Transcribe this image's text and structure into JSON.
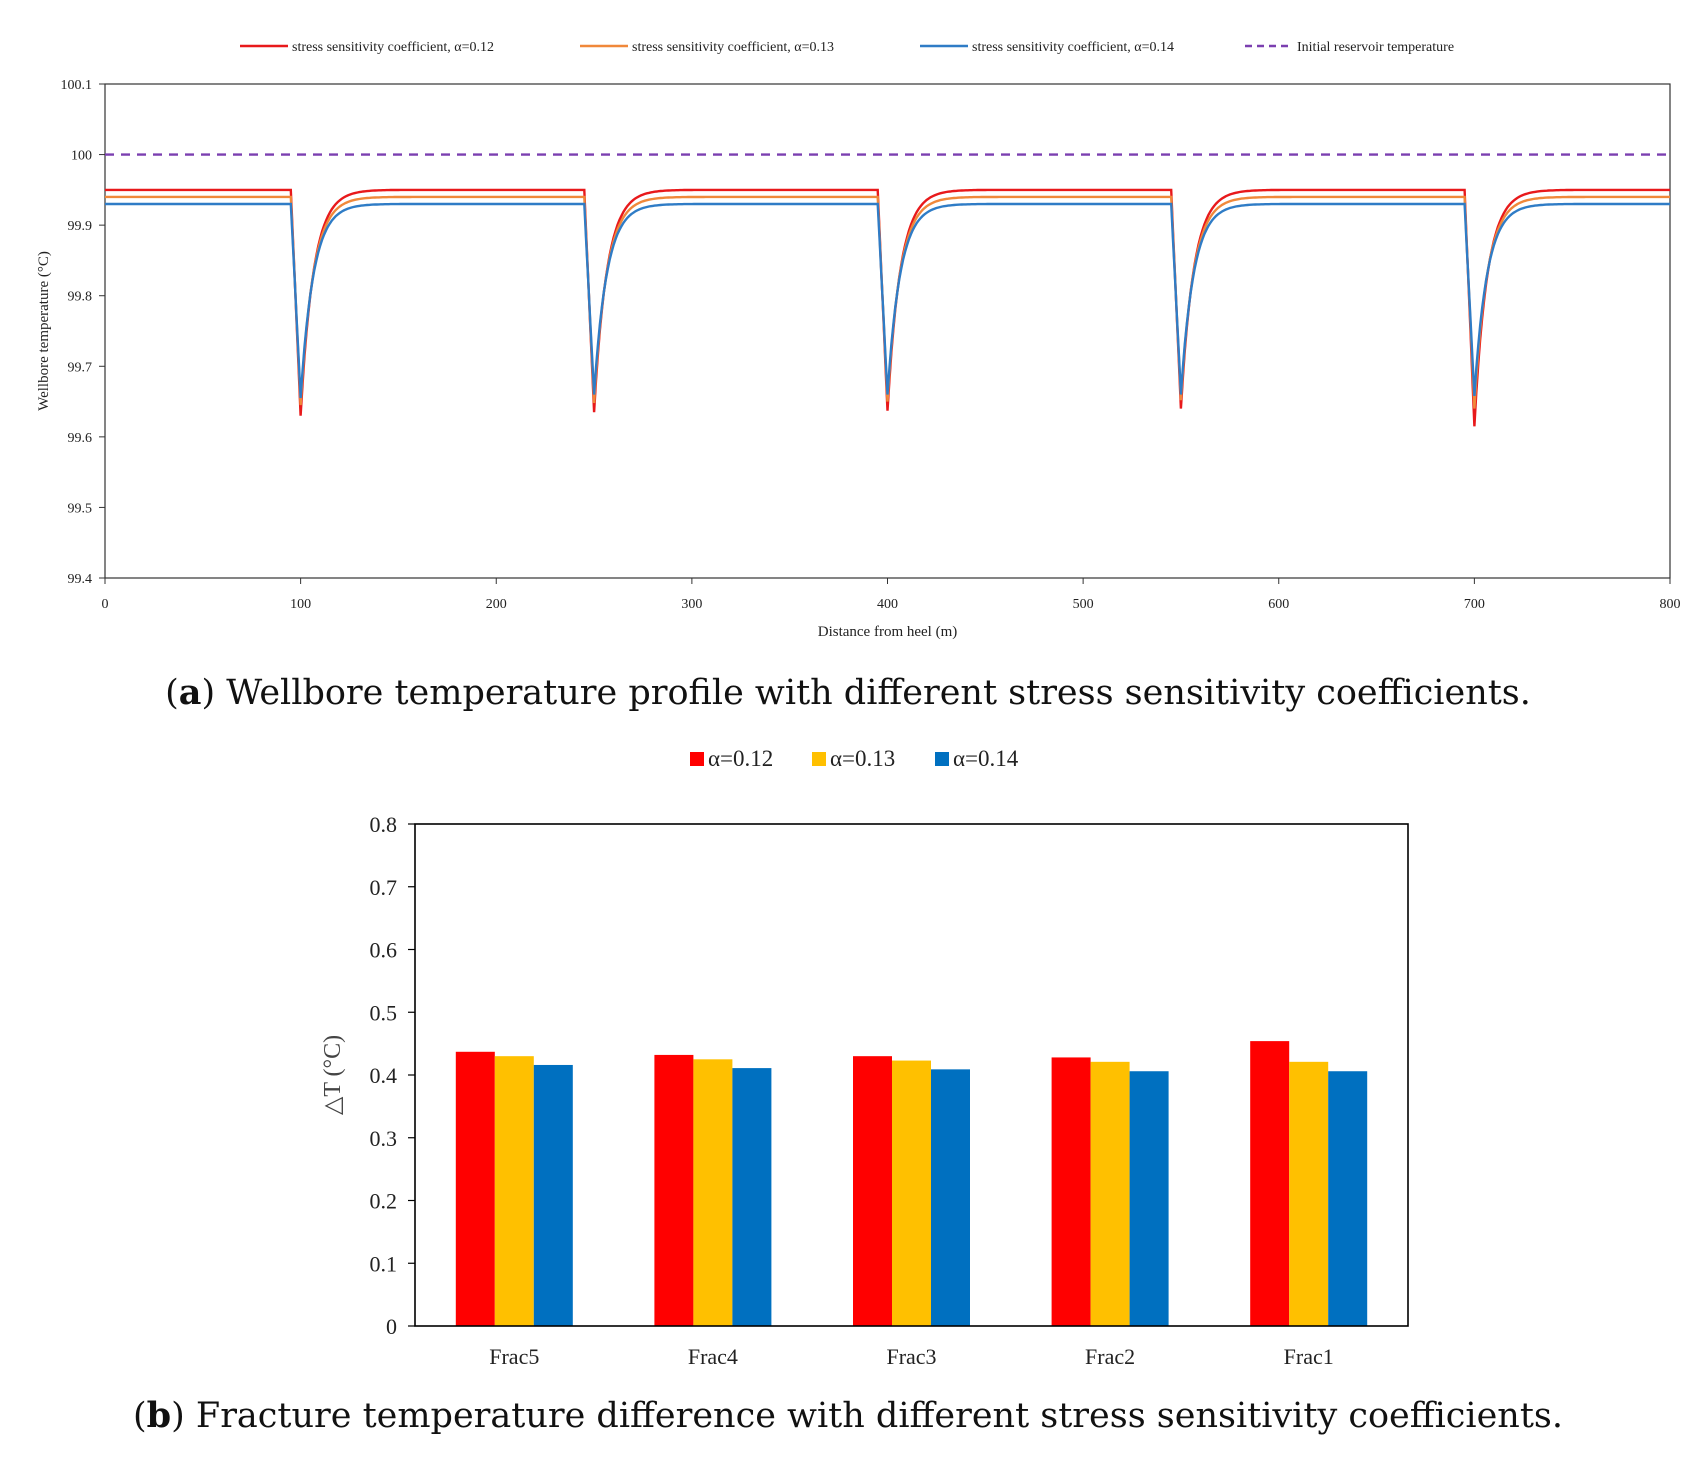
{
  "chart_data": [
    {
      "type": "line",
      "caption_letter": "a",
      "caption_text": "Wellbore temperature profile with different stress sensitivity coefficients.",
      "xlabel": "Distance from heel (m)",
      "ylabel": "Wellbore temperature (°C)",
      "xlim": [
        0,
        800
      ],
      "ylim": [
        99.4,
        100.1
      ],
      "xticks": [
        "0",
        "100",
        "200",
        "300",
        "400",
        "500",
        "600",
        "700",
        "800"
      ],
      "yticks": [
        "99.4",
        "99.5",
        "99.6",
        "99.7",
        "99.8",
        "99.9",
        "100",
        "100.1"
      ],
      "grid": false,
      "legend_position": "top",
      "dip_centers": [
        100,
        250,
        400,
        550,
        700
      ],
      "series": [
        {
          "name": "stress sensitivity  coefficient,  α=0.12",
          "color": "#e8191b",
          "style": "solid",
          "baseline": 99.95,
          "minima": [
            99.63,
            99.635,
            99.637,
            99.64,
            99.615
          ]
        },
        {
          "name": "stress sensitivity  coefficient,  α=0.13",
          "color": "#f0883a",
          "style": "solid",
          "baseline": 99.94,
          "minima": [
            99.645,
            99.648,
            99.65,
            99.652,
            99.64
          ]
        },
        {
          "name": "stress sensitivity  coefficient,  α=0.14",
          "color": "#2f7cc6",
          "style": "solid",
          "baseline": 99.93,
          "minima": [
            99.655,
            99.66,
            99.66,
            99.66,
            99.658
          ]
        },
        {
          "name": "Initial reservoir temperature",
          "color": "#7b3fb0",
          "style": "dashed",
          "constant": 100.0
        }
      ]
    },
    {
      "type": "bar",
      "caption_letter": "b",
      "caption_text": "Fracture temperature difference with different stress sensitivity coefficients.",
      "categories": [
        "Frac5",
        "Frac4",
        "Frac3",
        "Frac2",
        "Frac1"
      ],
      "ylabel": "△T (°C)",
      "ylim": [
        0,
        0.8
      ],
      "yticks": [
        "0",
        "0.1",
        "0.2",
        "0.3",
        "0.4",
        "0.5",
        "0.6",
        "0.7",
        "0.8"
      ],
      "grid": false,
      "legend_position": "top",
      "series": [
        {
          "name": "α=0.12",
          "color": "#ff0000",
          "values": [
            0.437,
            0.432,
            0.43,
            0.428,
            0.454
          ]
        },
        {
          "name": "α=0.13",
          "color": "#ffc000",
          "values": [
            0.43,
            0.425,
            0.423,
            0.421,
            0.421
          ]
        },
        {
          "name": "α=0.14",
          "color": "#0070c0",
          "values": [
            0.416,
            0.411,
            0.409,
            0.406,
            0.406
          ]
        }
      ]
    }
  ]
}
